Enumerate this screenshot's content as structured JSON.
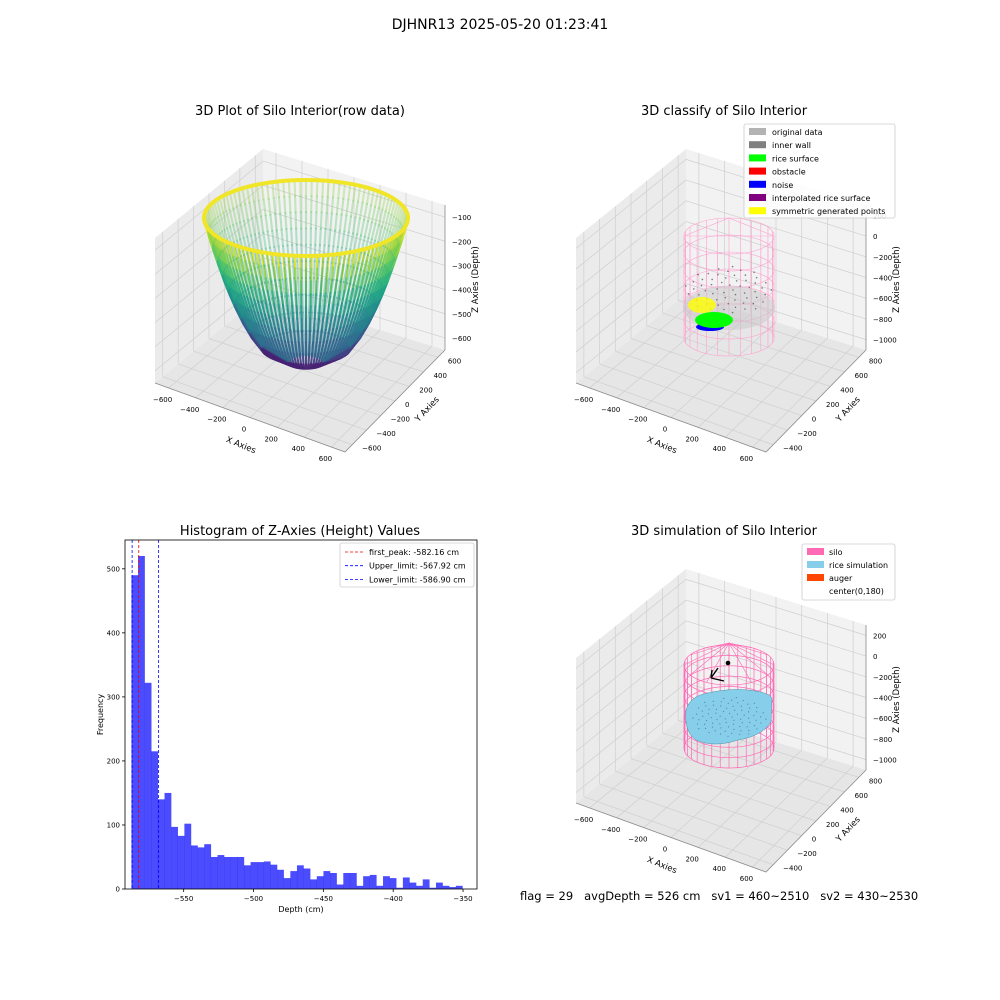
{
  "suptitle": "DJHNR13 2025-05-20 01:23:41",
  "footer": "flag = 29   avgDepth = 526 cm   sv1 = 460~2510   sv2 = 430~2530",
  "panel_titles": {
    "tl": "3D Plot of Silo Interior(row data)",
    "tr": "3D classify of Silo Interior",
    "bl": "Histogram of Z-Axies (Height) Values",
    "br": "3D simulation of Silo Interior"
  },
  "axis_labels": {
    "x": "X Axies",
    "y": "Y Axies",
    "z": "Z Axies (Depth)"
  },
  "legend_tr": [
    {
      "label": "original data",
      "color": "#b3b3b3"
    },
    {
      "label": "inner wall",
      "color": "#808080"
    },
    {
      "label": "rice surface",
      "color": "#00ff00"
    },
    {
      "label": "obstacle",
      "color": "#ff0000"
    },
    {
      "label": "noise",
      "color": "#0000ff"
    },
    {
      "label": "interpolated rice surface",
      "color": "#800080"
    },
    {
      "label": "symmetric generated points",
      "color": "#ffff00"
    }
  ],
  "legend_br": [
    {
      "label": "silo",
      "color": "#ff69b4"
    },
    {
      "label": "rice simulation",
      "color": "#87ceeb"
    },
    {
      "label": "auger",
      "color": "#ff4500"
    },
    {
      "label": "center(0,180)",
      "color": ""
    }
  ],
  "chart_data": [
    {
      "type": "scatter",
      "subtype": "3d-surface",
      "title": "3D Plot of Silo Interior(row data)",
      "xlabel": "X Axies",
      "ylabel": "Y Axies",
      "zlabel": "Z Axies (Depth)",
      "xticks": [
        -600,
        -400,
        -200,
        0,
        200,
        400,
        600
      ],
      "yticks": [
        -600,
        -400,
        -200,
        0,
        200,
        400,
        600
      ],
      "zticks": [
        -100,
        -200,
        -300,
        -400,
        -500,
        -600
      ],
      "colormap": "viridis"
    },
    {
      "type": "scatter",
      "subtype": "3d-classification",
      "title": "3D classify of Silo Interior",
      "xlabel": "X Axies",
      "ylabel": "Y Axies",
      "zlabel": "Z Axies (Depth)",
      "xticks": [
        -600,
        -400,
        -200,
        0,
        200,
        400,
        600
      ],
      "yticks": [
        -400,
        -200,
        0,
        200,
        400,
        600,
        800
      ],
      "zticks": [
        200,
        0,
        -200,
        -400,
        -600,
        -800,
        -1000
      ],
      "legend_position": "top-right"
    },
    {
      "type": "bar",
      "subtype": "histogram",
      "title": "Histogram of Z-Axies (Height) Values",
      "xlabel": "Depth (cm)",
      "ylabel": "Frequency",
      "xlim": [
        -592,
        -340
      ],
      "ylim": [
        0,
        545
      ],
      "xticks": [
        -550,
        -500,
        -450,
        -400,
        -350
      ],
      "yticks": [
        0,
        100,
        200,
        300,
        400,
        500
      ],
      "bar_color": "#0000ff",
      "bin_start": -587.4,
      "bin_width": 4.74,
      "values": [
        490,
        520,
        322,
        215,
        140,
        150,
        97,
        83,
        102,
        68,
        65,
        70,
        50,
        53,
        50,
        50,
        50,
        37,
        42,
        42,
        43,
        38,
        30,
        17,
        28,
        37,
        32,
        15,
        20,
        28,
        25,
        7,
        25,
        25,
        5,
        20,
        22,
        5,
        20,
        17,
        2,
        18,
        10,
        5,
        15,
        2,
        10,
        5,
        3,
        5
      ],
      "lines": [
        {
          "label": "first_peak: -582.16 cm",
          "x": -582.16,
          "color": "#ff0000"
        },
        {
          "label": "Upper_limit: -567.92 cm",
          "x": -567.92,
          "color": "#0000ff"
        },
        {
          "label": "Lower_limit: -586.90 cm",
          "x": -586.9,
          "color": "#0000ff"
        }
      ],
      "legend_position": "top-right"
    },
    {
      "type": "scatter",
      "subtype": "3d-simulation",
      "title": "3D simulation of Silo Interior",
      "xlabel": "X Axies",
      "ylabel": "Y Axies",
      "zlabel": "Z Axies (Depth)",
      "xticks": [
        -600,
        -400,
        -200,
        0,
        200,
        400,
        600
      ],
      "yticks": [
        -400,
        -200,
        0,
        200,
        400,
        600,
        800
      ],
      "zticks": [
        200,
        0,
        -200,
        -400,
        -600,
        -800,
        -1000
      ],
      "legend_position": "top-right"
    }
  ]
}
